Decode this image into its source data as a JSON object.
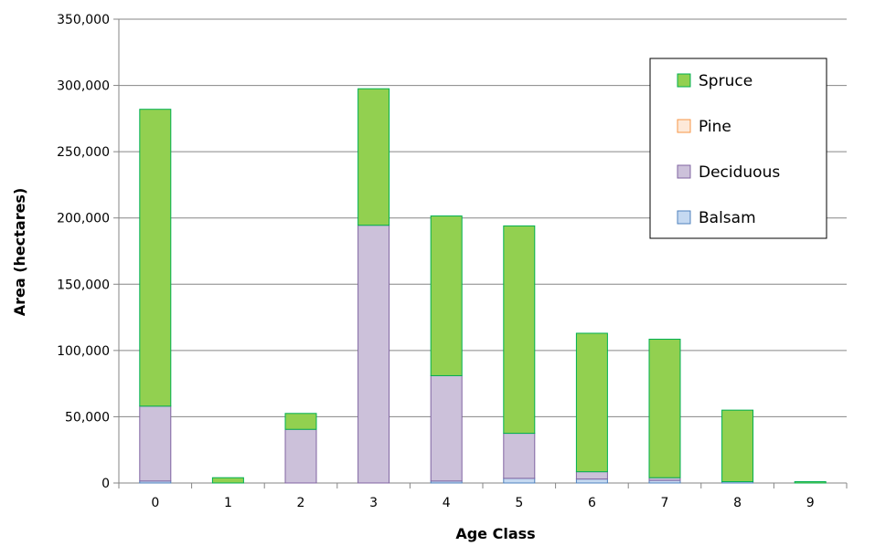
{
  "chart_data": {
    "type": "bar",
    "stacked": true,
    "title": "",
    "xlabel": "Age Class",
    "ylabel": "Area (hectares)",
    "categories": [
      "0",
      "1",
      "2",
      "3",
      "4",
      "5",
      "6",
      "7",
      "8",
      "9"
    ],
    "ylim": [
      0,
      350000
    ],
    "yticks": [
      "0",
      "50,000",
      "100,000",
      "150,000",
      "200,000",
      "250,000",
      "300,000",
      "350,000"
    ],
    "grid": true,
    "legend_position": "top-right",
    "series": [
      {
        "name": "Balsam",
        "color": "#c5d9f1",
        "stroke": "#4f81bd",
        "values": [
          1500,
          0,
          0,
          0,
          1500,
          3500,
          3000,
          2000,
          1000,
          0
        ]
      },
      {
        "name": "Deciduous",
        "color": "#ccc1da",
        "stroke": "#8064a2",
        "values": [
          56500,
          0,
          40500,
          194500,
          79500,
          34000,
          5500,
          2000,
          0,
          0
        ]
      },
      {
        "name": "Pine",
        "color": "#fde9d9",
        "stroke": "#f79646",
        "values": [
          0,
          0,
          0,
          0,
          0,
          0,
          0,
          0,
          0,
          0
        ]
      },
      {
        "name": "Spruce",
        "color": "#92d050",
        "stroke": "#00b050",
        "values": [
          224000,
          4000,
          12000,
          103000,
          120500,
          156500,
          104500,
          104500,
          54000,
          1000
        ]
      }
    ],
    "legend_order": [
      "Spruce",
      "Pine",
      "Deciduous",
      "Balsam"
    ]
  }
}
